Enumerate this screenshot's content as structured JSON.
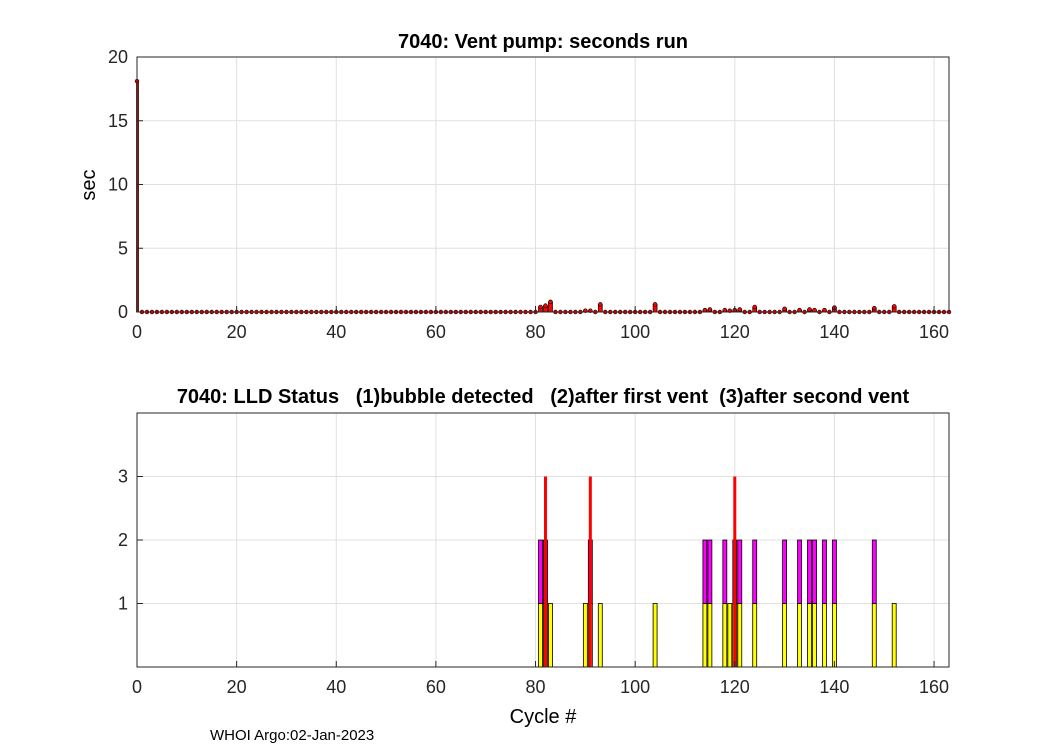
{
  "footer": "WHOI Argo:02-Jan-2023",
  "chart_data": [
    {
      "type": "bar",
      "title": "7040: Vent pump: seconds run",
      "xlabel": "",
      "ylabel": "sec",
      "xlim": [
        0,
        163
      ],
      "ylim": [
        0,
        20
      ],
      "xticks": [
        0,
        20,
        40,
        60,
        80,
        100,
        120,
        140,
        160
      ],
      "yticks": [
        0,
        5,
        10,
        15,
        20
      ],
      "grid": true,
      "bar_color": "#ff0000",
      "dot_color": "#ff0000",
      "nonzero": [
        {
          "x": 0,
          "y": 18.1
        },
        {
          "x": 81,
          "y": 0.4
        },
        {
          "x": 82,
          "y": 0.5
        },
        {
          "x": 83,
          "y": 0.8
        },
        {
          "x": 90,
          "y": 0.1
        },
        {
          "x": 91,
          "y": 0.1
        },
        {
          "x": 93,
          "y": 0.6
        },
        {
          "x": 104,
          "y": 0.6
        },
        {
          "x": 114,
          "y": 0.15
        },
        {
          "x": 115,
          "y": 0.2
        },
        {
          "x": 118,
          "y": 0.15
        },
        {
          "x": 119,
          "y": 0.1
        },
        {
          "x": 120,
          "y": 0.15
        },
        {
          "x": 121,
          "y": 0.2
        },
        {
          "x": 124,
          "y": 0.4
        },
        {
          "x": 130,
          "y": 0.25
        },
        {
          "x": 133,
          "y": 0.15
        },
        {
          "x": 135,
          "y": 0.2
        },
        {
          "x": 136,
          "y": 0.15
        },
        {
          "x": 138,
          "y": 0.15
        },
        {
          "x": 140,
          "y": 0.35
        },
        {
          "x": 148,
          "y": 0.3
        },
        {
          "x": 152,
          "y": 0.45
        }
      ],
      "xrange": [
        0,
        163
      ]
    },
    {
      "type": "bar",
      "title": "7040: LLD Status   (1)bubble detected   (2)after first vent  (3)after second vent",
      "xlabel": "Cycle #",
      "ylabel": "",
      "xlim": [
        0,
        163
      ],
      "ylim": [
        0,
        4
      ],
      "xticks": [
        0,
        20,
        40,
        60,
        80,
        100,
        120,
        140,
        160
      ],
      "yticks": [
        1,
        2,
        3
      ],
      "grid": true,
      "colors": {
        "1": "#ffff00",
        "2": "#ff00ff",
        "3": "#ff0000"
      },
      "statuses": [
        {
          "x": 81,
          "v": 2
        },
        {
          "x": 82,
          "v": 3
        },
        {
          "x": 83,
          "v": 1
        },
        {
          "x": 90,
          "v": 1
        },
        {
          "x": 91,
          "v": 3
        },
        {
          "x": 93,
          "v": 1
        },
        {
          "x": 104,
          "v": 1
        },
        {
          "x": 114,
          "v": 2
        },
        {
          "x": 115,
          "v": 2
        },
        {
          "x": 118,
          "v": 2
        },
        {
          "x": 119,
          "v": 1
        },
        {
          "x": 120,
          "v": 3
        },
        {
          "x": 121,
          "v": 2
        },
        {
          "x": 124,
          "v": 2
        },
        {
          "x": 130,
          "v": 2
        },
        {
          "x": 133,
          "v": 2
        },
        {
          "x": 135,
          "v": 2
        },
        {
          "x": 136,
          "v": 2
        },
        {
          "x": 138,
          "v": 2
        },
        {
          "x": 140,
          "v": 2
        },
        {
          "x": 148,
          "v": 2
        },
        {
          "x": 152,
          "v": 1
        }
      ]
    }
  ]
}
